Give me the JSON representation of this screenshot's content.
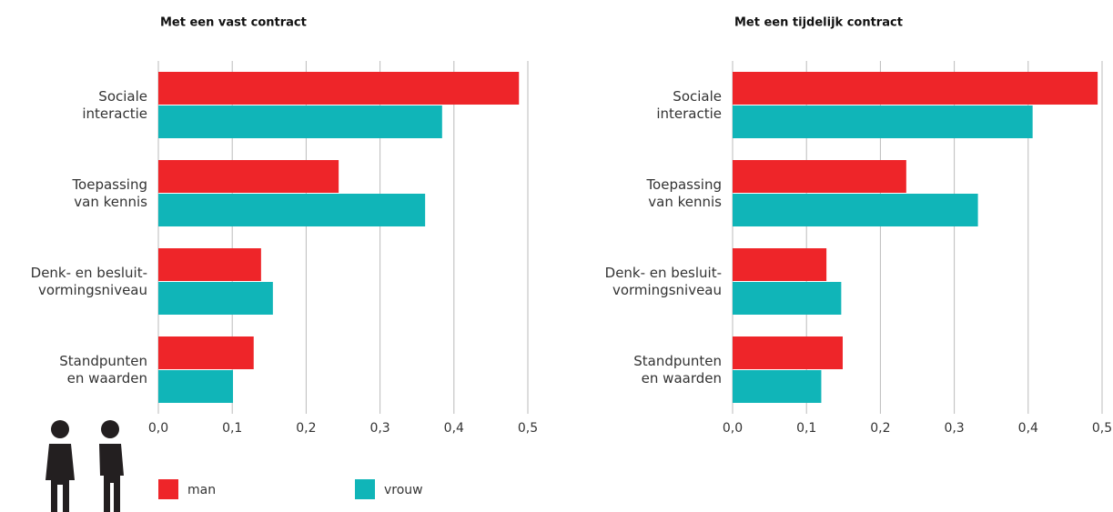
{
  "chart_data": [
    {
      "type": "bar",
      "orientation": "horizontal",
      "title": "Met een vast contract",
      "categories": [
        "Sociale\ninteractie",
        "Toepassing\nvan kennis",
        "Denk- en besluit-\nvormingsniveau",
        "Standpunten\nen waarden"
      ],
      "series": [
        {
          "name": "man",
          "color": "#ee2529",
          "values": [
            0.488,
            0.244,
            0.139,
            0.129
          ]
        },
        {
          "name": "vrouw",
          "color": "#10b5b8",
          "values": [
            0.384,
            0.361,
            0.155,
            0.101
          ]
        }
      ],
      "xlim": [
        0,
        0.5
      ],
      "xticks": [
        {
          "value": 0,
          "label": "0,0"
        },
        {
          "value": 0.1,
          "label": "0,1"
        },
        {
          "value": 0.2,
          "label": "0,2"
        },
        {
          "value": 0.3,
          "label": "0,3"
        },
        {
          "value": 0.4,
          "label": "0,4"
        },
        {
          "value": 0.5,
          "label": "0,5"
        }
      ],
      "grid": true,
      "legend": "bottom"
    },
    {
      "type": "bar",
      "orientation": "horizontal",
      "title": "Met een tijdelijk contract",
      "categories": [
        "Sociale\ninteractie",
        "Toepassing\nvan kennis",
        "Denk- en besluit-\nvormingsniveau",
        "Standpunten\nen waarden"
      ],
      "series": [
        {
          "name": "man",
          "color": "#ee2529",
          "values": [
            0.494,
            0.235,
            0.127,
            0.149
          ]
        },
        {
          "name": "vrouw",
          "color": "#10b5b8",
          "values": [
            0.406,
            0.332,
            0.147,
            0.12
          ]
        }
      ],
      "xlim": [
        0,
        0.5
      ],
      "xticks": [
        {
          "value": 0,
          "label": "0,0"
        },
        {
          "value": 0.1,
          "label": "0,1"
        },
        {
          "value": 0.2,
          "label": "0,2"
        },
        {
          "value": 0.3,
          "label": "0,3"
        },
        {
          "value": 0.4,
          "label": "0,4"
        },
        {
          "value": 0.5,
          "label": "0,5"
        }
      ],
      "grid": true
    }
  ]
}
